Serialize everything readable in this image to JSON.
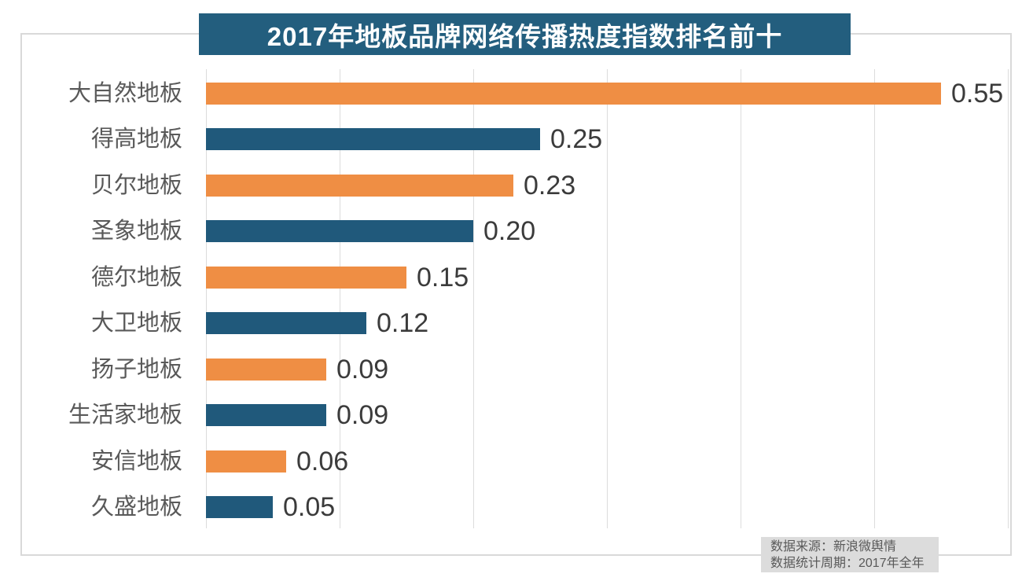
{
  "title": "2017年地板品牌网络传播热度指数排名前十",
  "source": {
    "line1": "数据来源：新浪微舆情",
    "line2": "数据统计周期：2017年全年"
  },
  "colors": {
    "title_bg": "#235e7e",
    "title_text": "#ffffff",
    "bar_orange": "#ef8e44",
    "bar_blue": "#20597b",
    "grid": "#dcdcdc",
    "border": "#d9d9d9",
    "category_label": "#595959",
    "value_label": "#3b3b3b",
    "source_bg": "#dcdcdc",
    "source_text": "#595959"
  },
  "chart_data": {
    "type": "bar",
    "orientation": "horizontal",
    "title": "2017年地板品牌网络传播热度指数排名前十",
    "categories": [
      "大自然地板",
      "得高地板",
      "贝尔地板",
      "圣象地板",
      "德尔地板",
      "大卫地板",
      "扬子地板",
      "生活家地板",
      "安信地板",
      "久盛地板"
    ],
    "values": [
      0.55,
      0.25,
      0.23,
      0.2,
      0.15,
      0.12,
      0.09,
      0.09,
      0.06,
      0.05
    ],
    "value_labels": [
      "0.55",
      "0.25",
      "0.23",
      "0.20",
      "0.15",
      "0.12",
      "0.09",
      "0.09",
      "0.06",
      "0.05"
    ],
    "series_colors_alternate": [
      "#ef8e44",
      "#20597b"
    ],
    "xlabel": "",
    "ylabel": "",
    "xlim": [
      0,
      0.6
    ],
    "grid_interval": 0.1,
    "grid": true,
    "legend": false,
    "data_labels": true,
    "source_note": [
      "数据来源：新浪微舆情",
      "数据统计周期：2017年全年"
    ]
  }
}
